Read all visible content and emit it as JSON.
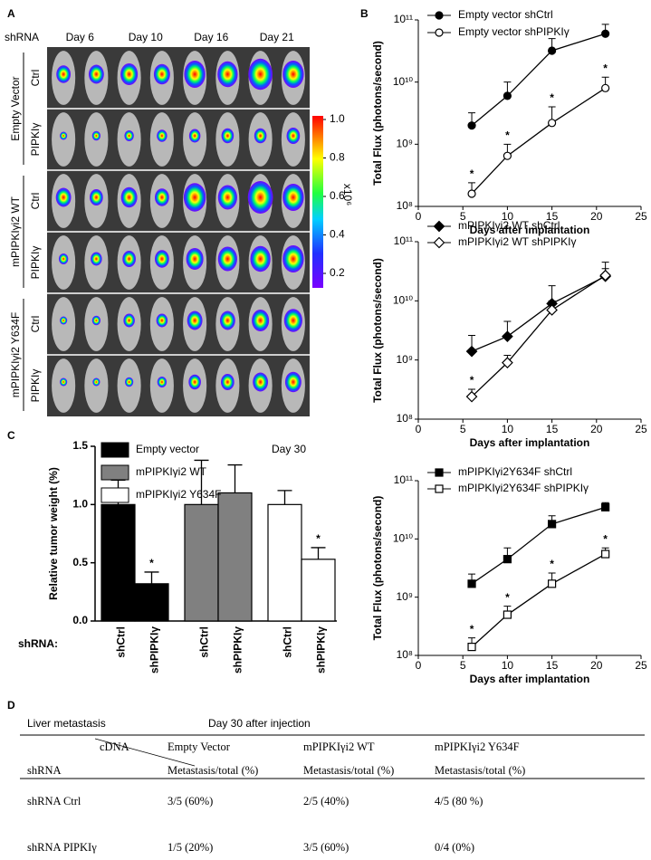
{
  "panel_labels": [
    "A",
    "B",
    "C",
    "D"
  ],
  "panel_a": {
    "row_header": "shRNA",
    "days": [
      "Day 6",
      "Day 10",
      "Day 16",
      "Day 21"
    ],
    "groups": [
      {
        "label": "Empty Vector",
        "rows": [
          "Ctrl",
          "PIPKIγ"
        ]
      },
      {
        "label": "mPIPKIγi2 WT",
        "rows": [
          "Ctrl",
          "PIPKIγ"
        ]
      },
      {
        "label": "mPIPKIγi2 Y634F",
        "rows": [
          "Ctrl",
          "PIPKIγ"
        ]
      }
    ],
    "colorbar": {
      "label": "x10⁶",
      "ticks": [
        {
          "value": 1.0,
          "label": "1.0"
        },
        0.8,
        0.6,
        0.4,
        0.2
      ]
    }
  },
  "chart_data": [
    {
      "type": "line",
      "xlabel": "Days after implantation",
      "ylabel": "Total Flux (photons/second)",
      "x": [
        6,
        10,
        15,
        21
      ],
      "xlim": [
        0,
        25
      ],
      "xticks": [
        0,
        5,
        10,
        15,
        20,
        25
      ],
      "ylim": [
        100000000,
        100000000000
      ],
      "yticks": [
        {
          "value": 100000000,
          "label": "10⁸"
        },
        {
          "value": 1000000000,
          "label": "10⁹"
        },
        {
          "value": 10000000000,
          "label": "10¹⁰"
        },
        {
          "value": 100000000000,
          "label": "10¹¹"
        }
      ],
      "log_y": true,
      "legend": "upper left",
      "series": [
        {
          "name": "Empty  vector shCtrl",
          "color": "#000000",
          "marker": "circle",
          "filled": true,
          "values": [
            2000000000,
            6000000000,
            32000000000,
            60000000000
          ],
          "errors": [
            1200000000,
            4000000000,
            18000000000,
            25000000000
          ],
          "annotations": [
            null,
            null,
            null,
            null
          ]
        },
        {
          "name": "Empty  vector shPIPKIγ",
          "color": "#000000",
          "marker": "circle",
          "filled": false,
          "values": [
            160000000,
            650000000,
            2200000000,
            8000000000
          ],
          "errors": [
            80000000,
            350000000,
            1800000000,
            4000000000
          ],
          "annotations": [
            "*",
            "*",
            "*",
            "*"
          ]
        }
      ]
    },
    {
      "type": "line",
      "xlabel": "Days after implantation",
      "ylabel": "Total Flux (photons/second)",
      "x": [
        6,
        10,
        15,
        21
      ],
      "xlim": [
        0,
        25
      ],
      "xticks": [
        0,
        5,
        10,
        15,
        20,
        25
      ],
      "ylim": [
        100000000,
        100000000000
      ],
      "yticks": [
        {
          "value": 100000000,
          "label": "10⁸"
        },
        {
          "value": 1000000000,
          "label": "10⁹"
        },
        {
          "value": 10000000000,
          "label": "10¹⁰"
        },
        {
          "value": 100000000000,
          "label": "10¹¹"
        }
      ],
      "log_y": true,
      "legend": "upper left",
      "series": [
        {
          "name": "mPIPKIγi2 WT shCtrl",
          "color": "#000000",
          "marker": "diamond",
          "filled": true,
          "values": [
            1400000000,
            2500000000,
            9000000000,
            26000000000
          ],
          "errors": [
            1200000000,
            2000000000,
            9000000000,
            19000000000
          ],
          "annotations": [
            null,
            null,
            null,
            null
          ]
        },
        {
          "name": "mPIPKIγi2 WT shPIPKIγ",
          "color": "#000000",
          "marker": "diamond",
          "filled": false,
          "values": [
            240000000,
            900000000,
            7000000000,
            27000000000
          ],
          "errors": [
            80000000,
            300000000,
            3000000000,
            8000000000
          ],
          "annotations": [
            "*",
            null,
            null,
            null
          ]
        }
      ]
    },
    {
      "type": "line",
      "xlabel": "Days after implantation",
      "ylabel": "Total Flux (photons/second)",
      "x": [
        6,
        10,
        15,
        21
      ],
      "xlim": [
        0,
        25
      ],
      "xticks": [
        0,
        5,
        10,
        15,
        20,
        25
      ],
      "ylim": [
        100000000,
        100000000000
      ],
      "yticks": [
        {
          "value": 100000000,
          "label": "10⁸"
        },
        {
          "value": 1000000000,
          "label": "10⁹"
        },
        {
          "value": 10000000000,
          "label": "10¹⁰"
        },
        {
          "value": 100000000000,
          "label": "10¹¹"
        }
      ],
      "log_y": true,
      "legend": "upper left",
      "series": [
        {
          "name": "mPIPKIγi2Y634F shCtrl",
          "color": "#000000",
          "marker": "square",
          "filled": true,
          "values": [
            1700000000,
            4500000000,
            18000000000,
            35000000000
          ],
          "errors": [
            800000000,
            2500000000,
            7000000000,
            7000000000
          ],
          "annotations": [
            null,
            null,
            null,
            null
          ]
        },
        {
          "name": "mPIPKIγi2Y634F shPIPKIγ",
          "color": "#000000",
          "marker": "square",
          "filled": false,
          "values": [
            140000000,
            500000000,
            1700000000,
            5500000000
          ],
          "errors": [
            60000000,
            200000000,
            900000000,
            1500000000
          ],
          "annotations": [
            "*",
            "*",
            "*",
            "*"
          ]
        }
      ]
    },
    {
      "type": "bar",
      "ylabel": "Relative tumor weight (%)",
      "xlabel": "shRNA:",
      "annotation": "Day 30",
      "categories": [
        "shCtrl",
        "shPIPKIγ",
        "shCtrl",
        "shPIPKIγ",
        "shCtrl",
        "shPIPKIγ"
      ],
      "ylim": [
        0,
        1.5
      ],
      "yticks": [
        {
          "value": 0,
          "label": "0.0"
        },
        0.5,
        {
          "value": 1.0,
          "label": "1.0"
        },
        1.5
      ],
      "legend": "upper left",
      "series": [
        {
          "name": "Empty vector",
          "color": "#000000",
          "values": [
            1.0,
            0.32,
            null,
            null,
            null,
            null
          ],
          "errors": [
            0.21,
            0.1,
            null,
            null,
            null,
            null
          ],
          "annotations": [
            null,
            "*",
            null,
            null,
            null,
            null
          ]
        },
        {
          "name": "mPIPKIγi2 WT",
          "color": "#808080",
          "values": [
            null,
            null,
            1.0,
            1.1,
            null,
            null
          ],
          "errors": [
            null,
            null,
            0.38,
            0.24,
            null,
            null
          ],
          "annotations": [
            null,
            null,
            null,
            null,
            null,
            null
          ]
        },
        {
          "name": "mPIPKIγi2 Y634F",
          "color": "#ffffff",
          "values": [
            null,
            null,
            null,
            null,
            1.0,
            0.53
          ],
          "errors": [
            null,
            null,
            null,
            null,
            0.12,
            0.1
          ],
          "annotations": [
            null,
            null,
            null,
            null,
            null,
            "*"
          ]
        }
      ]
    }
  ],
  "table": {
    "title": "Liver metastasis",
    "subtitle": "Day 30 after injection",
    "corner": {
      "column_label": "cDNA",
      "row_label": "shRNA"
    },
    "columns": [
      {
        "name": "Empty Vector",
        "subheader": "Metastasis/total (%)"
      },
      {
        "name": "mPIPKIγi2 WT",
        "subheader": "Metastasis/total (%)"
      },
      {
        "name": "mPIPKIγi2 Y634F",
        "subheader": "Metastasis/total (%)"
      }
    ],
    "rows": [
      [
        "shRNA Ctrl",
        "3/5 (60%)",
        "2/5 (40%)",
        "4/5 (80 %)"
      ],
      [
        "shRNA PIPKIγ",
        "1/5 (20%)",
        "3/5 (60%)",
        "0/4 (0%)"
      ]
    ]
  }
}
